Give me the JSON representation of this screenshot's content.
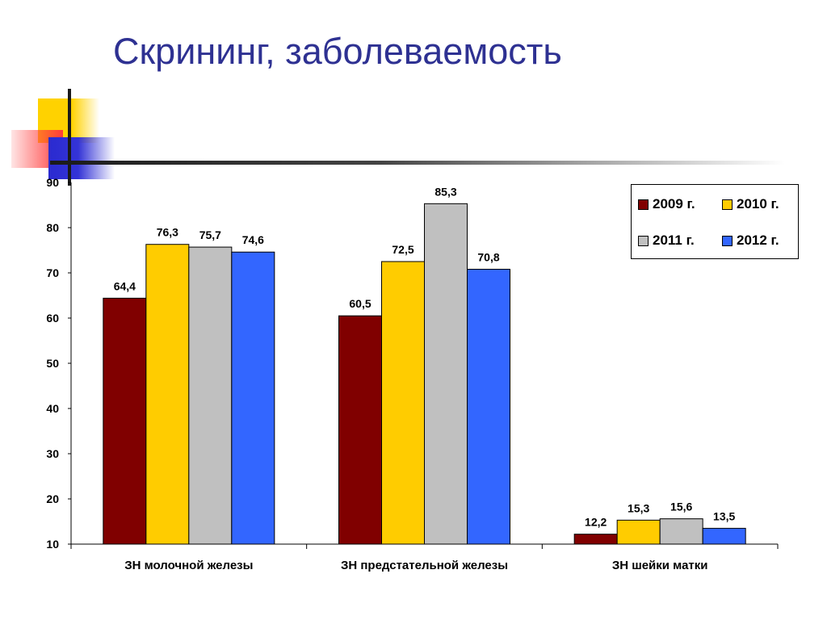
{
  "slide": {
    "title": "Скрининг, заболеваемость"
  },
  "chart_data": {
    "type": "bar",
    "categories": [
      "ЗН молочной железы",
      "ЗН предстательной железы",
      "ЗН шейки матки"
    ],
    "series": [
      {
        "name": "2009 г.",
        "color": "#800000",
        "values": [
          64.4,
          60.5,
          12.2
        ],
        "labels": [
          "64,4",
          "60,5",
          "12,2"
        ]
      },
      {
        "name": "2010 г.",
        "color": "#ffcc00",
        "values": [
          76.3,
          72.5,
          15.3
        ],
        "labels": [
          "76,3",
          "72,5",
          "15,3"
        ]
      },
      {
        "name": "2011 г.",
        "color": "#c0c0c0",
        "values": [
          75.7,
          85.3,
          15.6
        ],
        "labels": [
          "75,7",
          "85,3",
          "15,6"
        ]
      },
      {
        "name": "2012 г.",
        "color": "#3366ff",
        "values": [
          74.6,
          70.8,
          13.5
        ],
        "labels": [
          "74,6",
          "70,8",
          "13,5"
        ]
      }
    ],
    "ylim": [
      10,
      90
    ],
    "yticks": [
      "10",
      "20",
      "30",
      "40",
      "50",
      "60",
      "70",
      "80",
      "90"
    ],
    "grid": false,
    "legend_position": "top-right"
  }
}
